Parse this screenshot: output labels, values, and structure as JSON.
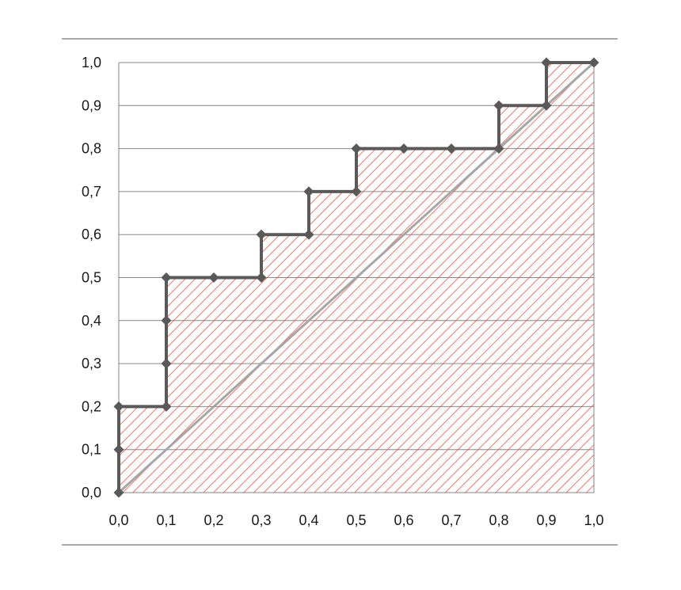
{
  "chart_data": {
    "type": "line",
    "title": "",
    "xlabel": "",
    "ylabel": "",
    "xlim": [
      0,
      1
    ],
    "ylim": [
      0,
      1
    ],
    "grid": "horizontal",
    "legend": "none",
    "x_tick_labels": [
      "0,0",
      "0,1",
      "0,2",
      "0,3",
      "0,4",
      "0,5",
      "0,6",
      "0,7",
      "0,8",
      "0,9",
      "1,0"
    ],
    "y_tick_labels": [
      "0,0",
      "0,1",
      "0,2",
      "0,3",
      "0,4",
      "0,5",
      "0,6",
      "0,7",
      "0,8",
      "0,9",
      "1,0"
    ],
    "series": [
      {
        "kind": "step-curve",
        "fill": "hatched area under curve",
        "points": [
          [
            0.0,
            0.0
          ],
          [
            0.0,
            0.1
          ],
          [
            0.0,
            0.2
          ],
          [
            0.1,
            0.2
          ],
          [
            0.1,
            0.3
          ],
          [
            0.1,
            0.4
          ],
          [
            0.1,
            0.5
          ],
          [
            0.2,
            0.5
          ],
          [
            0.3,
            0.5
          ],
          [
            0.3,
            0.6
          ],
          [
            0.4,
            0.6
          ],
          [
            0.4,
            0.7
          ],
          [
            0.5,
            0.7
          ],
          [
            0.5,
            0.8
          ],
          [
            0.6,
            0.8
          ],
          [
            0.7,
            0.8
          ],
          [
            0.8,
            0.8
          ],
          [
            0.8,
            0.9
          ],
          [
            0.9,
            0.9
          ],
          [
            0.9,
            1.0
          ],
          [
            1.0,
            1.0
          ]
        ]
      },
      {
        "kind": "diagonal",
        "points": [
          [
            0.0,
            0.0
          ],
          [
            1.0,
            1.0
          ]
        ]
      }
    ]
  },
  "colors": {
    "curve": "#595959",
    "marker": "#595959",
    "diagonal": "#a6a6a6",
    "hatch": "#e8553f",
    "grid": "#868686",
    "frame_rule": "#8c8c8c",
    "text": "#1a1a1a"
  }
}
